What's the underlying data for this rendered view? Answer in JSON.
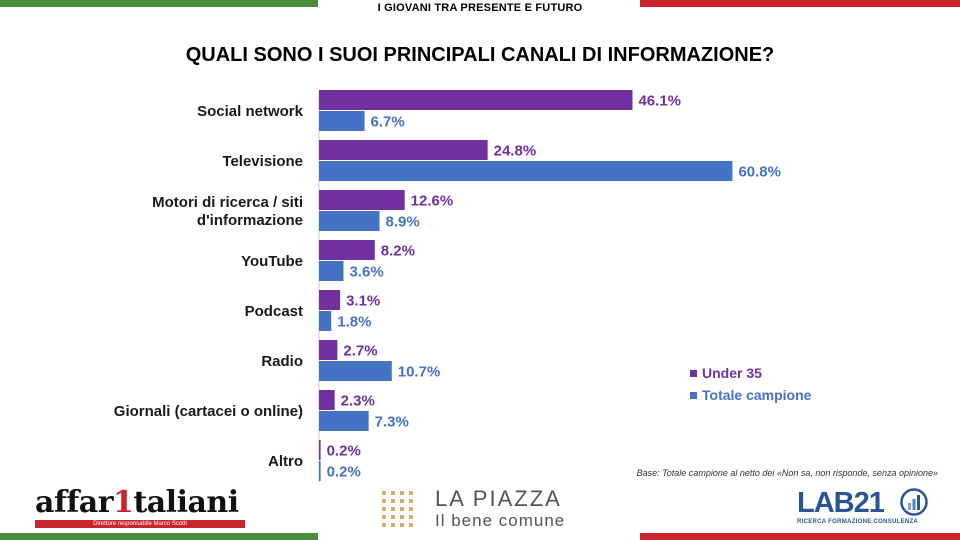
{
  "header": "I GIOVANI TRA PRESENTE E FUTURO",
  "title": "QUALI SONO I SUOI PRINCIPALI CANALI DI INFORMAZIONE?",
  "colors": {
    "under35": "#7030a0",
    "totale": "#4472c4",
    "flag_green": "#4a8f3c",
    "flag_red": "#c9252c"
  },
  "chart_data": {
    "type": "bar",
    "orientation": "horizontal",
    "categories": [
      [
        "Social network"
      ],
      [
        "Televisione"
      ],
      [
        "Motori di ricerca / siti",
        "d'informazione"
      ],
      [
        "YouTube"
      ],
      [
        "Podcast"
      ],
      [
        "Radio"
      ],
      [
        "Giornali (cartacei o online)"
      ],
      [
        "Altro"
      ]
    ],
    "series": [
      {
        "name": "Under 35",
        "color": "#7030a0",
        "values": [
          46.1,
          24.8,
          12.6,
          8.2,
          3.1,
          2.7,
          2.3,
          0.2
        ],
        "labels": [
          "46.1%",
          "24.8%",
          "12.6%",
          "8.2%",
          "3.1%",
          "2.7%",
          "2.3%",
          "0.2%"
        ]
      },
      {
        "name": "Totale campione",
        "color": "#4472c4",
        "values": [
          6.7,
          60.8,
          8.9,
          3.6,
          1.8,
          10.7,
          7.3,
          0.2
        ],
        "labels": [
          "6.7%",
          "60.8%",
          "8.9%",
          "3.6%",
          "1.8%",
          "10.7%",
          "7.3%",
          "0.2%"
        ]
      }
    ],
    "legend_position": "right"
  },
  "footnote": "Base: Totale campione al netto dei «Non sa, non risponde, senza opinione»",
  "logos": {
    "affaritaliani": {
      "word_a": "affar",
      "word_one": "1",
      "word_b": "taliani",
      "sub": "Direttore responsabile Marco Scotti"
    },
    "lapiazza": {
      "name": "LA PIAZZA",
      "tagline": "Il bene comune"
    },
    "lab21": {
      "name": "LAB21",
      "sub": "RICERCA FORMAZIONE CONSULENZA"
    }
  }
}
